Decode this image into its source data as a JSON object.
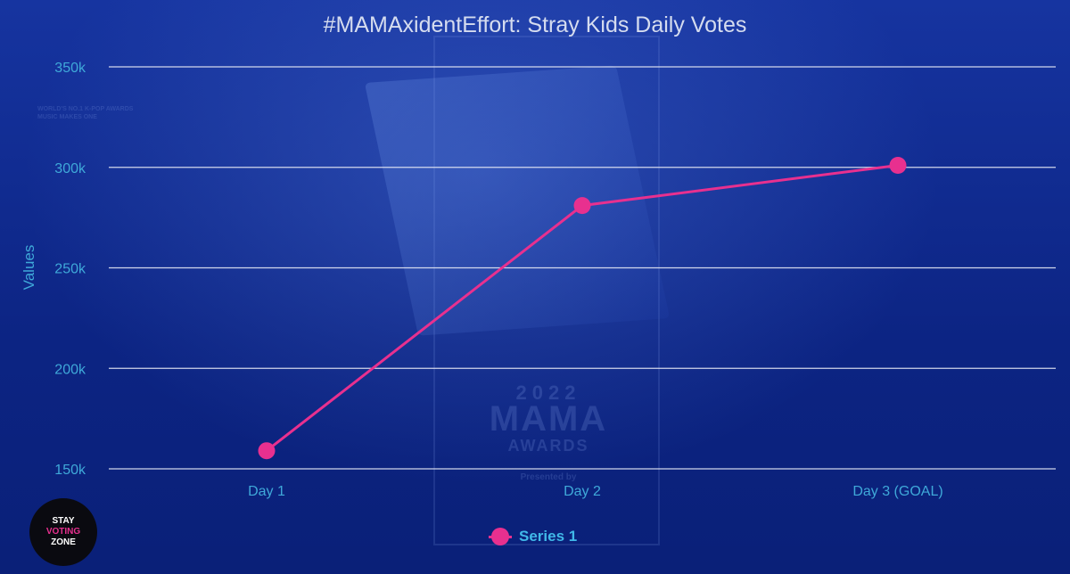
{
  "chart_data": {
    "type": "line",
    "title": "#MAMAxidentEffort: Stray Kids Daily Votes",
    "xlabel": "",
    "ylabel": "Values",
    "categories": [
      "Day 1",
      "Day 2",
      "Day 3 (GOAL)"
    ],
    "series": [
      {
        "name": "Series 1",
        "values": [
          159000,
          281000,
          301000
        ],
        "color": "#e8308f"
      }
    ],
    "ylim": [
      150000,
      350000
    ],
    "yticks": [
      150000,
      200000,
      250000,
      300000,
      350000
    ],
    "ytick_labels": [
      "150k",
      "200k",
      "250k",
      "300k",
      "350k"
    ],
    "grid": true,
    "legend_position": "bottom"
  },
  "colors": {
    "axis_text": "#3fa9d9",
    "grid": "#e6e9f5",
    "title_text": "#d5dcef",
    "series": "#e8308f"
  },
  "watermark": {
    "year": "2022",
    "brand": "MAMA",
    "awards": "AWARDS",
    "presented": "Presented by",
    "tagline_1": "WORLD'S NO.1 K-POP AWARDS",
    "tagline_2": "MUSIC MAKES ONE"
  },
  "logo": {
    "line1": "STAY",
    "line2": "VOTING",
    "line3": "ZONE"
  }
}
